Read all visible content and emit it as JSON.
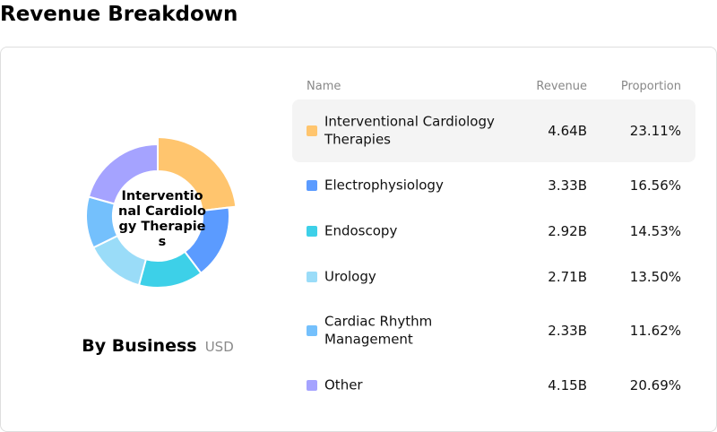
{
  "page": {
    "title": "Revenue Breakdown"
  },
  "donut": {
    "center_label": "Interventional Cardiology Therapies",
    "caption_main": "By Business",
    "caption_unit": "USD",
    "highlight_index": 0
  },
  "table": {
    "headers": {
      "name": "Name",
      "revenue": "Revenue",
      "proportion": "Proportion"
    },
    "rows": [
      {
        "name": "Interventional Cardiology Therapies",
        "revenue": "4.64B",
        "proportion": "23.11%",
        "color": "#FFC56E"
      },
      {
        "name": "Electrophysiology",
        "revenue": "3.33B",
        "proportion": "16.56%",
        "color": "#5B9BFF"
      },
      {
        "name": "Endoscopy",
        "revenue": "2.92B",
        "proportion": "14.53%",
        "color": "#3DD0E8"
      },
      {
        "name": "Urology",
        "revenue": "2.71B",
        "proportion": "13.50%",
        "color": "#9ADCF8"
      },
      {
        "name": "Cardiac Rhythm Management",
        "revenue": "2.33B",
        "proportion": "11.62%",
        "color": "#74C0FC"
      },
      {
        "name": "Other",
        "revenue": "4.15B",
        "proportion": "20.69%",
        "color": "#A5A3FF"
      }
    ]
  },
  "chart_data": {
    "type": "pie",
    "title": "By Business",
    "unit": "USD",
    "categories": [
      "Interventional Cardiology Therapies",
      "Electrophysiology",
      "Endoscopy",
      "Urology",
      "Cardiac Rhythm Management",
      "Other"
    ],
    "values": [
      4.64,
      3.33,
      2.92,
      2.71,
      2.33,
      4.15
    ],
    "percentages": [
      23.11,
      16.56,
      14.53,
      13.5,
      11.62,
      20.69
    ],
    "colors": [
      "#FFC56E",
      "#5B9BFF",
      "#3DD0E8",
      "#9ADCF8",
      "#74C0FC",
      "#A5A3FF"
    ]
  }
}
